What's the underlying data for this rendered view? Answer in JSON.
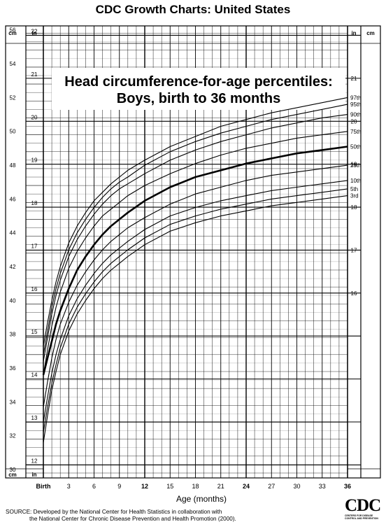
{
  "page": {
    "title": "CDC Growth Charts: United States",
    "footer_line1": "SOURCE: Developed by the National Center for Health Statistics in collaboration with",
    "footer_line2": "the National Center for Chronic Disease Prevention and Health Promotion (2000).",
    "logo_text": "CDC",
    "logo_subtext": "CENTERS FOR DISEASE CONTROL AND PREVENTION"
  },
  "chart_data": {
    "type": "line",
    "title": "Head circumference-for-age percentiles:",
    "subtitle": "Boys, birth to 36 months",
    "xlabel": "Age (months)",
    "x_tick_labels": [
      "Birth",
      "3",
      "6",
      "9",
      "12",
      "15",
      "18",
      "21",
      "24",
      "27",
      "30",
      "33",
      "36"
    ],
    "x_bold_ticks": [
      "Birth",
      "12",
      "24",
      "36"
    ],
    "xlim": [
      0,
      36
    ],
    "left_unit": "cm",
    "right_unit": "in",
    "ylim_cm": [
      30,
      57
    ],
    "y_cm_ticks": [
      30,
      32,
      34,
      36,
      38,
      40,
      42,
      44,
      46,
      48,
      50,
      52,
      54,
      56
    ],
    "y_in_ticks": [
      12,
      13,
      14,
      15,
      16,
      17,
      18,
      19,
      20,
      21,
      22
    ],
    "y_in_right_ticks": [
      16,
      17,
      18,
      19,
      20,
      21
    ],
    "grid": true,
    "ages": [
      0,
      0.5,
      1,
      1.5,
      2,
      3,
      4,
      5,
      6,
      7,
      8,
      9,
      10,
      12,
      15,
      18,
      21,
      24,
      27,
      30,
      33,
      36
    ],
    "series": [
      {
        "name": "97th",
        "bold": false,
        "values": [
          37.5,
          38.9,
          40.2,
          41.3,
          42.2,
          43.6,
          44.6,
          45.4,
          46.1,
          46.6,
          47.1,
          47.5,
          47.9,
          48.5,
          49.3,
          49.9,
          50.5,
          50.9,
          51.3,
          51.6,
          51.9,
          52.2
        ]
      },
      {
        "name": "95th",
        "bold": false,
        "values": [
          37.0,
          38.4,
          39.8,
          40.9,
          41.8,
          43.2,
          44.2,
          45.0,
          45.7,
          46.3,
          46.8,
          47.2,
          47.5,
          48.2,
          49.0,
          49.6,
          50.1,
          50.5,
          50.9,
          51.2,
          51.5,
          51.8
        ]
      },
      {
        "name": "90th",
        "bold": false,
        "values": [
          36.6,
          38.0,
          39.4,
          40.5,
          41.4,
          42.8,
          43.8,
          44.6,
          45.3,
          45.9,
          46.4,
          46.8,
          47.1,
          47.7,
          48.5,
          49.1,
          49.6,
          50.0,
          50.4,
          50.7,
          51.0,
          51.2
        ]
      },
      {
        "name": "75th",
        "bold": false,
        "values": [
          35.8,
          37.3,
          38.7,
          39.8,
          40.7,
          42.1,
          43.1,
          43.9,
          44.6,
          45.2,
          45.6,
          46.0,
          46.4,
          47.0,
          47.7,
          48.3,
          48.8,
          49.2,
          49.5,
          49.8,
          50.0,
          50.2
        ]
      },
      {
        "name": "50th",
        "bold": true,
        "values": [
          35.8,
          36.8,
          37.8,
          38.8,
          39.6,
          40.9,
          42.0,
          42.8,
          43.5,
          44.1,
          44.6,
          45.0,
          45.4,
          46.1,
          46.9,
          47.5,
          47.9,
          48.3,
          48.6,
          48.9,
          49.1,
          49.3
        ]
      },
      {
        "name": "25th",
        "bold": false,
        "values": [
          33.9,
          35.4,
          36.8,
          37.9,
          38.8,
          40.1,
          41.1,
          41.9,
          42.6,
          43.2,
          43.7,
          44.1,
          44.5,
          45.1,
          45.9,
          46.5,
          46.9,
          47.3,
          47.6,
          47.8,
          48.0,
          48.2
        ]
      },
      {
        "name": "10th",
        "bold": false,
        "values": [
          33.0,
          34.5,
          35.9,
          37.0,
          37.9,
          39.3,
          40.3,
          41.1,
          41.8,
          42.4,
          42.9,
          43.3,
          43.7,
          44.4,
          45.2,
          45.7,
          46.1,
          46.4,
          46.7,
          46.9,
          47.1,
          47.3
        ]
      },
      {
        "name": "5th",
        "bold": false,
        "values": [
          32.4,
          33.9,
          35.3,
          36.4,
          37.4,
          38.8,
          39.8,
          40.6,
          41.3,
          41.9,
          42.4,
          42.8,
          43.2,
          43.9,
          44.7,
          45.2,
          45.6,
          45.9,
          46.2,
          46.4,
          46.6,
          46.8
        ]
      },
      {
        "name": "3rd",
        "bold": false,
        "values": [
          31.8,
          33.4,
          34.9,
          36.0,
          37.0,
          38.4,
          39.4,
          40.2,
          40.9,
          41.5,
          42.0,
          42.4,
          42.8,
          43.5,
          44.3,
          44.8,
          45.2,
          45.5,
          45.8,
          46.0,
          46.2,
          46.4
        ]
      }
    ]
  }
}
